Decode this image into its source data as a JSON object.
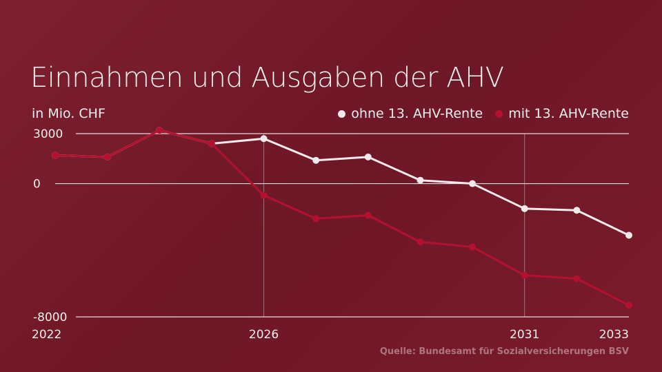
{
  "title": "Einnahmen und Ausgaben der AHV",
  "unit": "in Mio. CHF",
  "source": "Quelle: Bundesamt für Sozialversicherungen BSV",
  "colors": {
    "ohne": "#f2eaec",
    "mit": "#b3112f",
    "grid": "#e8dcdf"
  },
  "chart_data": {
    "type": "line",
    "x": [
      2022,
      2023,
      2024,
      2025,
      2026,
      2027,
      2028,
      2029,
      2030,
      2031,
      2032,
      2033
    ],
    "series": [
      {
        "name": "ohne 13. AHV-Rente",
        "color": "#f2eaec",
        "values": [
          1700,
          1600,
          3200,
          2400,
          2700,
          1400,
          1600,
          200,
          0,
          -1500,
          -1600,
          -3100
        ]
      },
      {
        "name": "mit 13. AHV-Rente",
        "color": "#b3112f",
        "values": [
          1700,
          1600,
          3200,
          2400,
          -700,
          -2100,
          -1900,
          -3500,
          -3800,
          -5500,
          -5700,
          -7300
        ]
      }
    ],
    "yticks": [
      3000,
      0,
      -8000
    ],
    "yticklabels": [
      "3000",
      "0",
      "-8000"
    ],
    "xticks": [
      2022,
      2026,
      2031,
      2033
    ],
    "xticklabels": [
      "2022",
      "2026",
      "2031",
      "2033"
    ],
    "ylim": [
      -8000,
      3000
    ],
    "xlim": [
      2022,
      2033
    ],
    "legend": "top-right",
    "grid": true
  }
}
